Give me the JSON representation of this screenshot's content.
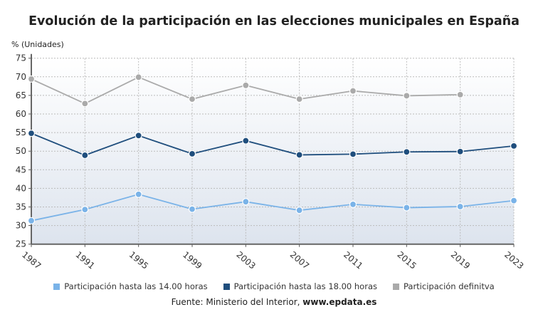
{
  "chart_data": {
    "type": "line",
    "title": "Evolución de la participación en las elecciones municipales en España",
    "ylabel": "% (Unidades)",
    "ylim": [
      25,
      75
    ],
    "yticks": [
      25,
      30,
      35,
      40,
      45,
      50,
      55,
      60,
      65,
      70,
      75
    ],
    "grid": true,
    "legend_placement": "bottom",
    "categories": [
      "1987",
      "1991",
      "1995",
      "1999",
      "2003",
      "2007",
      "2011",
      "2015",
      "2019",
      "2023"
    ],
    "series": [
      {
        "name": "Participación hasta las 14.00 horas",
        "color": "#7ab3e8",
        "values": [
          31.3,
          34.3,
          38.4,
          34.4,
          36.4,
          34.1,
          35.7,
          34.8,
          35.1,
          36.7
        ]
      },
      {
        "name": "Participación hasta las 18.00 horas",
        "color": "#1f4e7d",
        "values": [
          54.8,
          48.9,
          54.2,
          49.3,
          52.8,
          49.0,
          49.2,
          49.8,
          49.9,
          51.4
        ]
      },
      {
        "name": "Participación definitva",
        "color": "#aaaaaa",
        "values": [
          69.4,
          62.8,
          69.9,
          64.0,
          67.7,
          64.0,
          66.2,
          64.9,
          65.2,
          null
        ]
      }
    ]
  },
  "source": {
    "prefix": "Fuente: Ministerio del Interior, ",
    "site": "www.epdata.es"
  }
}
